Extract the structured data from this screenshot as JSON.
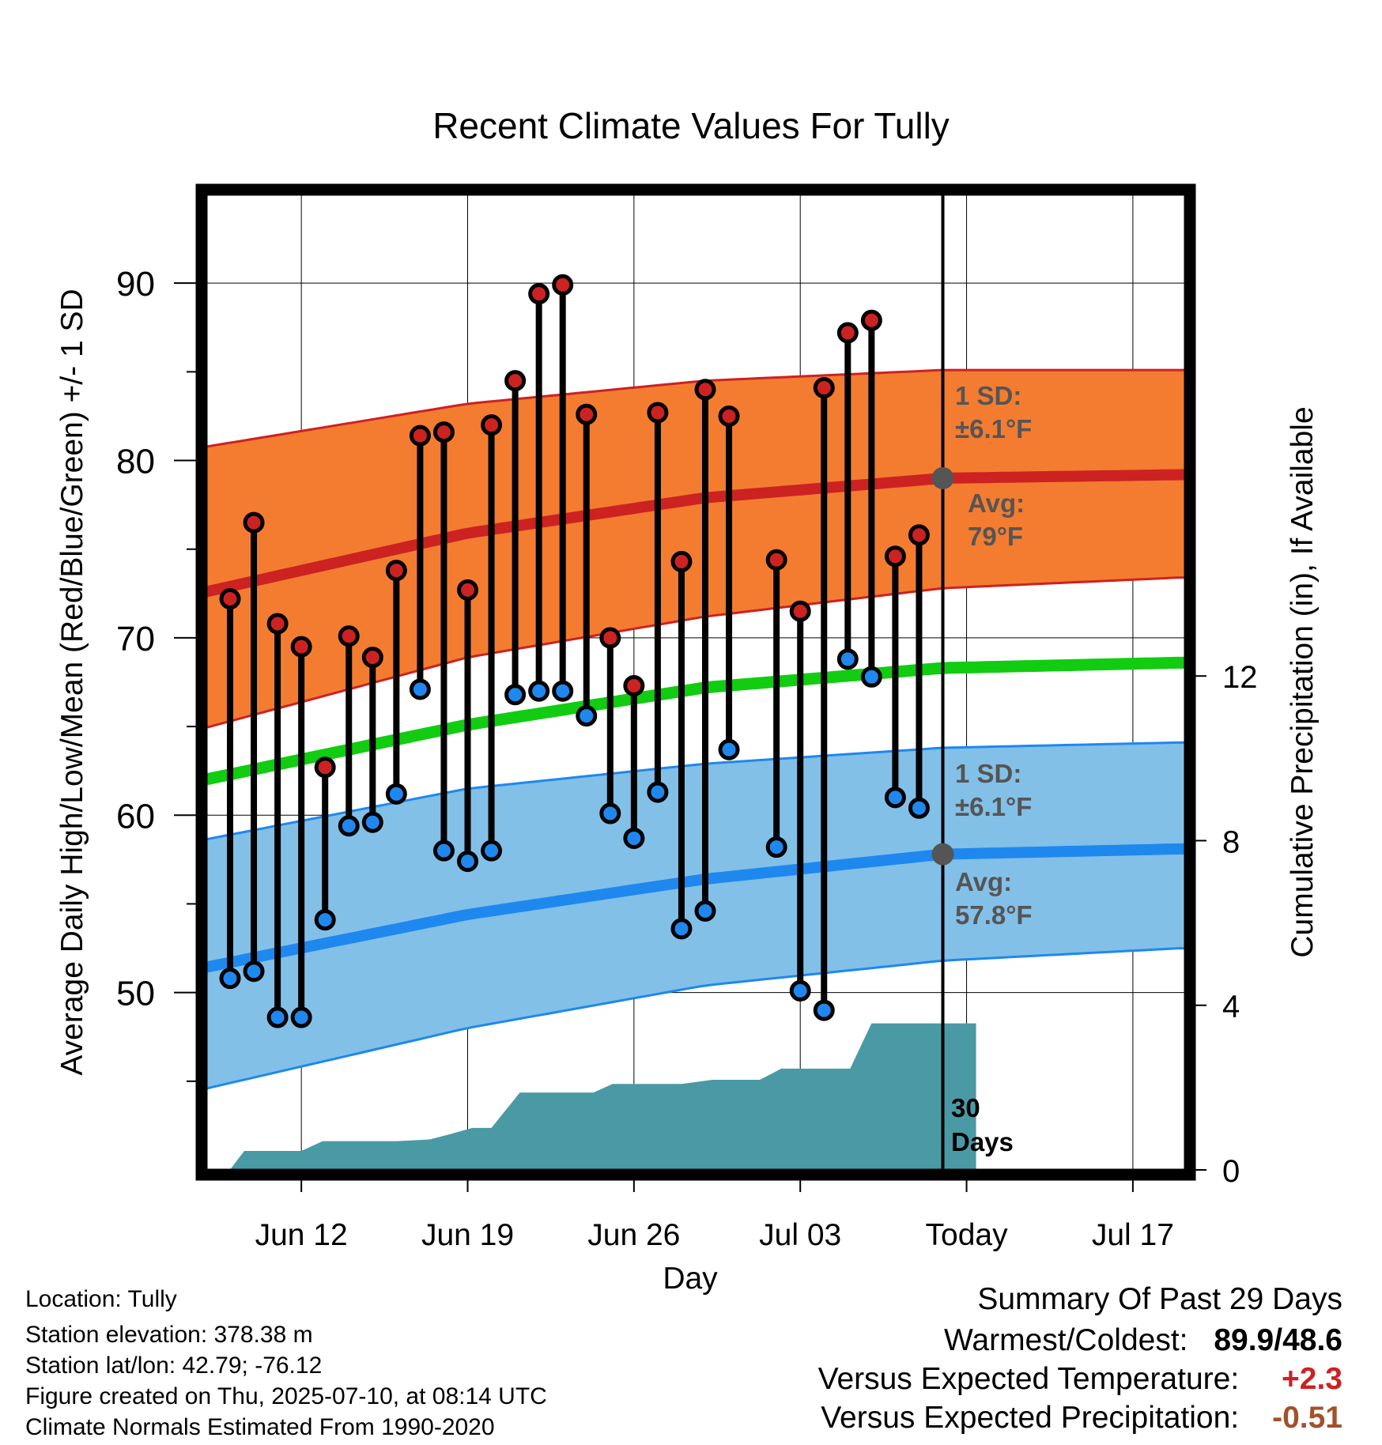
{
  "chart_data": {
    "type": "line",
    "title": "Recent Climate Values For Tully",
    "xlabel": "Day",
    "ylabel": "Average Daily High/Low/Mean (Red/Blue/Green) +/- 1 SD",
    "y2label": "Cumulative Precipitation (in), If Available",
    "x_ticks": [
      "Jun 12",
      "Jun 19",
      "Jun 26",
      "Jul 03",
      "Today",
      "Jul 17"
    ],
    "y_ticks": [
      50,
      60,
      70,
      80,
      90
    ],
    "y2_ticks": [
      0,
      4,
      8,
      12
    ],
    "ylim": [
      40,
      95
    ],
    "y2lim": [
      0,
      23.7
    ],
    "grid": true,
    "days": [
      {
        "date": "2025-06-10",
        "high": 72.2,
        "low": 50.8
      },
      {
        "date": "2025-06-11",
        "high": 76.5,
        "low": 51.2
      },
      {
        "date": "2025-06-12",
        "high": 70.8,
        "low": 48.6
      },
      {
        "date": "2025-06-13",
        "high": 69.5,
        "low": 48.6
      },
      {
        "date": "2025-06-14",
        "high": 62.7,
        "low": 54.1
      },
      {
        "date": "2025-06-15",
        "high": 70.1,
        "low": 59.4
      },
      {
        "date": "2025-06-16",
        "high": 68.9,
        "low": 59.6
      },
      {
        "date": "2025-06-17",
        "high": 73.8,
        "low": 61.2
      },
      {
        "date": "2025-06-18",
        "high": 81.4,
        "low": 67.1
      },
      {
        "date": "2025-06-19",
        "high": 81.6,
        "low": 58.0
      },
      {
        "date": "2025-06-20",
        "high": 72.7,
        "low": 57.4
      },
      {
        "date": "2025-06-21",
        "high": 82.0,
        "low": 58.0
      },
      {
        "date": "2025-06-22",
        "high": 84.5,
        "low": 66.8
      },
      {
        "date": "2025-06-23",
        "high": 89.4,
        "low": 67.0
      },
      {
        "date": "2025-06-24",
        "high": 89.9,
        "low": 67.0
      },
      {
        "date": "2025-06-25",
        "high": 82.6,
        "low": 65.6
      },
      {
        "date": "2025-06-26",
        "high": 70.0,
        "low": 60.1
      },
      {
        "date": "2025-06-27",
        "high": 67.3,
        "low": 58.7
      },
      {
        "date": "2025-06-28",
        "high": 82.7,
        "low": 61.3
      },
      {
        "date": "2025-06-29",
        "high": 74.3,
        "low": 53.6
      },
      {
        "date": "2025-06-30",
        "high": 84.0,
        "low": 54.6
      },
      {
        "date": "2025-07-01",
        "high": 82.5,
        "low": 63.7
      },
      {
        "date": "2025-07-02",
        "high": null,
        "low": null
      },
      {
        "date": "2025-07-03",
        "high": 74.4,
        "low": 58.2
      },
      {
        "date": "2025-07-04",
        "high": 71.5,
        "low": 50.1
      },
      {
        "date": "2025-07-05",
        "high": 84.1,
        "low": 49.0
      },
      {
        "date": "2025-07-06",
        "high": 87.2,
        "low": 68.8
      },
      {
        "date": "2025-07-07",
        "high": 87.9,
        "low": 67.8
      },
      {
        "date": "2025-07-08",
        "high": 74.6,
        "low": 61.0
      },
      {
        "date": "2025-07-09",
        "high": 75.8,
        "low": 60.4
      }
    ],
    "today_index": 30,
    "normals": {
      "x": [
        0,
        10,
        20,
        30,
        40
      ],
      "high_avg": [
        72.9,
        75.9,
        77.9,
        79.0,
        79.2
      ],
      "high_upper": [
        81.0,
        83.2,
        84.5,
        85.1,
        85.1
      ],
      "high_lower": [
        65.3,
        68.9,
        71.2,
        72.8,
        73.4
      ],
      "mean_avg": [
        62.3,
        65.1,
        67.2,
        68.3,
        68.6
      ],
      "low_avg": [
        51.7,
        54.4,
        56.4,
        57.8,
        58.1
      ],
      "low_upper": [
        58.9,
        61.5,
        62.9,
        63.8,
        64.1
      ],
      "low_lower": [
        44.9,
        48.0,
        50.4,
        51.8,
        52.5
      ]
    },
    "precipitation": {
      "x": [
        0,
        0.6,
        3,
        3.9,
        7,
        8.4,
        9.2,
        10.2,
        11,
        12.2,
        15.3,
        16.1,
        19,
        20.3,
        22.3,
        23.2,
        26.1,
        27,
        30,
        31.4
      ],
      "cumulative": [
        0.01,
        0.46,
        0.46,
        0.7,
        0.7,
        0.74,
        0.86,
        1.02,
        1.02,
        1.88,
        1.88,
        2.09,
        2.09,
        2.19,
        2.19,
        2.46,
        2.46,
        3.56,
        3.56,
        3.56
      ]
    },
    "annotations": {
      "high_sd": "1 SD:\n±6.1°F",
      "high_avg": "Avg:\n79°F",
      "low_sd": "1 SD:\n±6.1°F",
      "low_avg": "Avg:\n57.8°F",
      "window": "30\nDays"
    },
    "colors": {
      "high_band": "#f47c30",
      "high_line": "#cc2222",
      "mean_line": "#11cc11",
      "low_band": "#82c0e8",
      "low_line": "#1e88ee",
      "precip": "#4a9aa5",
      "high_marker": "#cc2222",
      "low_marker": "#1e88ee",
      "annotation": "#555555"
    }
  },
  "info": {
    "location": "Location: Tully",
    "elevation": "Station elevation: 378.38 m",
    "latlon": "Station lat/lon: 42.79; -76.12",
    "created": "Figure created on Thu, 2025-07-10, at 08:14 UTC",
    "normals": "Climate Normals Estimated From 1990-2020"
  },
  "summary": {
    "title": "Summary Of Past 29 Days",
    "warmest_label": "Warmest/Coldest:",
    "warmest_value": "89.9/48.6",
    "temp_label": "Versus Expected Temperature:",
    "temp_value": "+2.3",
    "temp_color": "#cc2222",
    "precip_label": "Versus Expected Precipitation:",
    "precip_value": "-0.51",
    "precip_color": "#a0522d"
  }
}
